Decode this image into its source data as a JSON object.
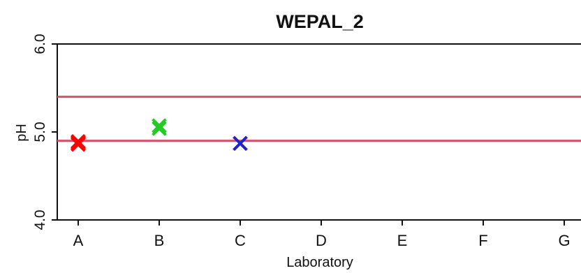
{
  "chart_data": {
    "type": "scatter",
    "title": "WEPAL_2",
    "xlabel": "Laboratory",
    "ylabel": "pH",
    "categories": [
      "A",
      "B",
      "C",
      "D",
      "E",
      "F",
      "G"
    ],
    "y_ticks": [
      "4.0",
      "5.0",
      "6.0"
    ],
    "ylim": [
      4.0,
      6.0
    ],
    "grid": false,
    "reference_lines": [
      {
        "y": 5.4,
        "color": "#d94f68"
      },
      {
        "y": 4.9,
        "color": "#d94f68"
      }
    ],
    "series": [
      {
        "color": "#ff0000",
        "marker": "x",
        "points": [
          {
            "x": "A",
            "y": 4.89
          },
          {
            "x": "A",
            "y": 4.87
          },
          {
            "x": "A",
            "y": 4.86
          },
          {
            "x": "A",
            "y": 4.88
          }
        ]
      },
      {
        "color": "#22cc22",
        "marker": "x",
        "points": [
          {
            "x": "B",
            "y": 5.07
          },
          {
            "x": "B",
            "y": 5.04
          }
        ]
      },
      {
        "color": "#2222cc",
        "marker": "x",
        "points": [
          {
            "x": "C",
            "y": 4.87
          }
        ]
      }
    ]
  }
}
